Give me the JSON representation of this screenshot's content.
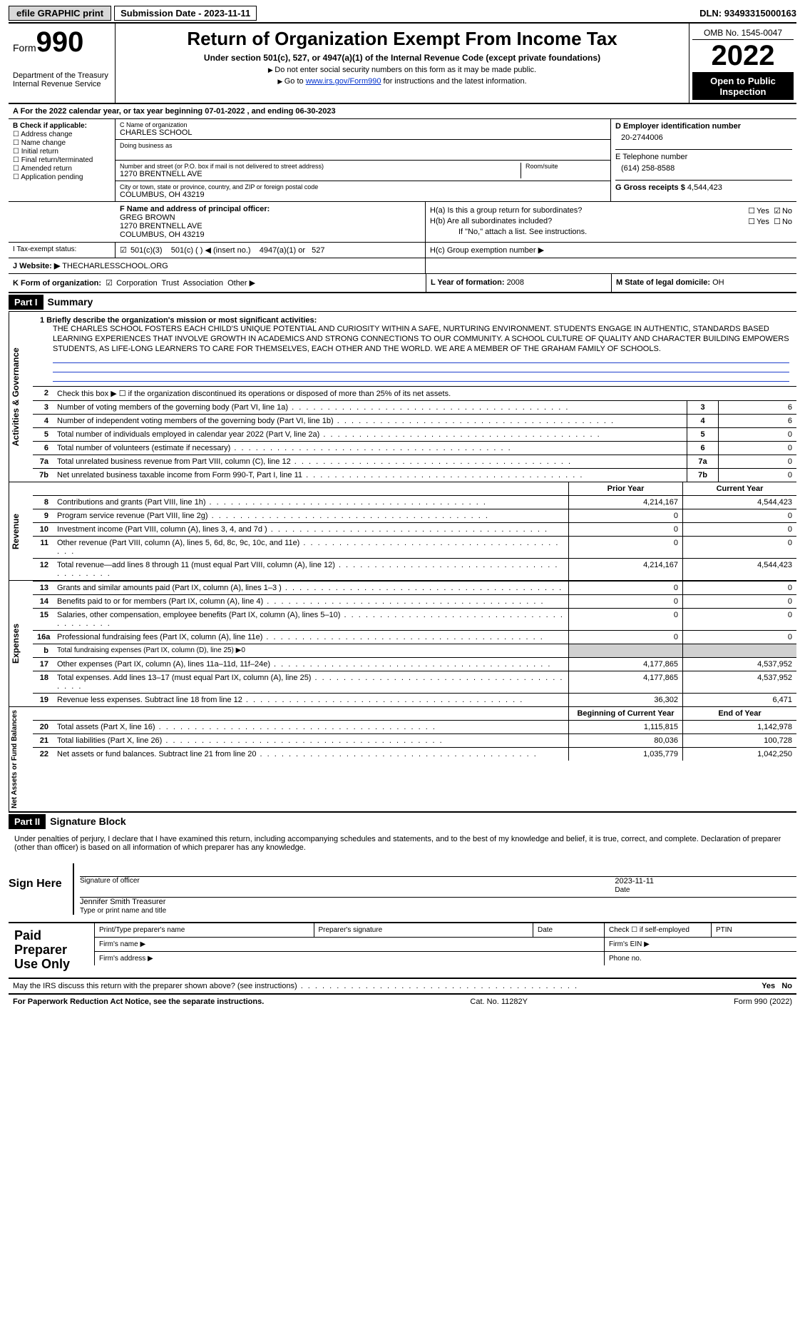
{
  "topbar": {
    "efile": "efile GRAPHIC print",
    "sub_label": "Submission Date - ",
    "sub_date": "2023-11-11",
    "dln_label": "DLN: ",
    "dln": "93493315000163"
  },
  "header": {
    "form_word": "Form",
    "form_num": "990",
    "dept": "Department of the Treasury\nInternal Revenue Service",
    "title": "Return of Organization Exempt From Income Tax",
    "sub": "Under section 501(c), 527, or 4947(a)(1) of the Internal Revenue Code (except private foundations)",
    "note1": "Do not enter social security numbers on this form as it may be made public.",
    "note2_pre": "Go to ",
    "note2_link": "www.irs.gov/Form990",
    "note2_post": " for instructions and the latest information.",
    "omb": "OMB No. 1545-0047",
    "year": "2022",
    "open": "Open to Public Inspection"
  },
  "period": {
    "text_a": "A For the 2022 calendar year, or tax year beginning ",
    "begin": "07-01-2022",
    "text_b": " , and ending ",
    "end": "06-30-2023"
  },
  "colB": {
    "label": "B Check if applicable:",
    "items": [
      "Address change",
      "Name change",
      "Initial return",
      "Final return/terminated",
      "Amended return",
      "Application pending"
    ]
  },
  "colC": {
    "name_label": "C Name of organization",
    "name": "CHARLES SCHOOL",
    "dba_label": "Doing business as",
    "street_label": "Number and street (or P.O. box if mail is not delivered to street address)",
    "street": "1270 BRENTNELL AVE",
    "room_label": "Room/suite",
    "city_label": "City or town, state or province, country, and ZIP or foreign postal code",
    "city": "COLUMBUS, OH  43219"
  },
  "colD": {
    "ein_label": "D Employer identification number",
    "ein": "20-2744006",
    "phone_label": "E Telephone number",
    "phone": "(614) 258-8588",
    "gross_label": "G Gross receipts $ ",
    "gross": "4,544,423"
  },
  "colF": {
    "label": "F Name and address of principal officer:",
    "name": "GREG BROWN",
    "street": "1270 BRENTNELL AVE",
    "city": "COLUMBUS, OH  43219"
  },
  "colH": {
    "ha": "H(a)  Is this a group return for subordinates?",
    "hb": "H(b)  Are all subordinates included?",
    "hb_note": "If \"No,\" attach a list. See instructions.",
    "hc": "H(c)  Group exemption number ▶",
    "yes": "Yes",
    "no": "No"
  },
  "statusI": {
    "label": "I Tax-exempt status:",
    "o1": "501(c)(3)",
    "o2": "501(c) (  ) ◀ (insert no.)",
    "o3": "4947(a)(1) or",
    "o4": "527"
  },
  "rowJ": {
    "label": "J  Website: ▶",
    "value": "THECHARLESSCHOOL.ORG"
  },
  "rowK": {
    "label": "K Form of organization:",
    "o1": "Corporation",
    "o2": "Trust",
    "o3": "Association",
    "o4": "Other ▶",
    "L": "L Year of formation: ",
    "Lv": "2008",
    "M": "M State of legal domicile: ",
    "Mv": "OH"
  },
  "part1": {
    "hdr": "Part I",
    "title": "Summary",
    "side_gov": "Activities & Governance",
    "side_rev": "Revenue",
    "side_exp": "Expenses",
    "side_net": "Net Assets or Fund Balances",
    "line1_label": "1  Briefly describe the organization's mission or most significant activities:",
    "mission": "THE CHARLES SCHOOL FOSTERS EACH CHILD'S UNIQUE POTENTIAL AND CURIOSITY WITHIN A SAFE, NURTURING ENVIRONMENT. STUDENTS ENGAGE IN AUTHENTIC, STANDARDS BASED LEARNING EXPERIENCES THAT INVOLVE GROWTH IN ACADEMICS AND STRONG CONNECTIONS TO OUR COMMUNITY. A SCHOOL CULTURE OF QUALITY AND CHARACTER BUILDING EMPOWERS STUDENTS, AS LIFE-LONG LEARNERS TO CARE FOR THEMSELVES, EACH OTHER AND THE WORLD. WE ARE A MEMBER OF THE GRAHAM FAMILY OF SCHOOLS.",
    "line2": "Check this box ▶ ☐ if the organization discontinued its operations or disposed of more than 25% of its net assets.",
    "lines_num": [
      {
        "n": "3",
        "d": "Number of voting members of the governing body (Part VI, line 1a)",
        "box": "3",
        "v": "6"
      },
      {
        "n": "4",
        "d": "Number of independent voting members of the governing body (Part VI, line 1b)",
        "box": "4",
        "v": "6"
      },
      {
        "n": "5",
        "d": "Total number of individuals employed in calendar year 2022 (Part V, line 2a)",
        "box": "5",
        "v": "0"
      },
      {
        "n": "6",
        "d": "Total number of volunteers (estimate if necessary)",
        "box": "6",
        "v": "0"
      },
      {
        "n": "7a",
        "d": "Total unrelated business revenue from Part VIII, column (C), line 12",
        "box": "7a",
        "v": "0"
      },
      {
        "n": "7b",
        "d": "Net unrelated business taxable income from Form 990-T, Part I, line 11",
        "box": "7b",
        "v": "0"
      }
    ],
    "py_hdr": "Prior Year",
    "cy_hdr": "Current Year",
    "rev_lines": [
      {
        "n": "8",
        "d": "Contributions and grants (Part VIII, line 1h)",
        "py": "4,214,167",
        "cy": "4,544,423"
      },
      {
        "n": "9",
        "d": "Program service revenue (Part VIII, line 2g)",
        "py": "0",
        "cy": "0"
      },
      {
        "n": "10",
        "d": "Investment income (Part VIII, column (A), lines 3, 4, and 7d )",
        "py": "0",
        "cy": "0"
      },
      {
        "n": "11",
        "d": "Other revenue (Part VIII, column (A), lines 5, 6d, 8c, 9c, 10c, and 11e)",
        "py": "0",
        "cy": "0"
      },
      {
        "n": "12",
        "d": "Total revenue—add lines 8 through 11 (must equal Part VIII, column (A), line 12)",
        "py": "4,214,167",
        "cy": "4,544,423"
      }
    ],
    "exp_lines": [
      {
        "n": "13",
        "d": "Grants and similar amounts paid (Part IX, column (A), lines 1–3 )",
        "py": "0",
        "cy": "0"
      },
      {
        "n": "14",
        "d": "Benefits paid to or for members (Part IX, column (A), line 4)",
        "py": "0",
        "cy": "0"
      },
      {
        "n": "15",
        "d": "Salaries, other compensation, employee benefits (Part IX, column (A), lines 5–10)",
        "py": "0",
        "cy": "0"
      },
      {
        "n": "16a",
        "d": "Professional fundraising fees (Part IX, column (A), line 11e)",
        "py": "0",
        "cy": "0"
      },
      {
        "n": "b",
        "d": "Total fundraising expenses (Part IX, column (D), line 25) ▶0",
        "py": "",
        "cy": "",
        "gray": true
      },
      {
        "n": "17",
        "d": "Other expenses (Part IX, column (A), lines 11a–11d, 11f–24e)",
        "py": "4,177,865",
        "cy": "4,537,952"
      },
      {
        "n": "18",
        "d": "Total expenses. Add lines 13–17 (must equal Part IX, column (A), line 25)",
        "py": "4,177,865",
        "cy": "4,537,952"
      },
      {
        "n": "19",
        "d": "Revenue less expenses. Subtract line 18 from line 12",
        "py": "36,302",
        "cy": "6,471"
      }
    ],
    "bcy_hdr": "Beginning of Current Year",
    "ecy_hdr": "End of Year",
    "net_lines": [
      {
        "n": "20",
        "d": "Total assets (Part X, line 16)",
        "py": "1,115,815",
        "cy": "1,142,978"
      },
      {
        "n": "21",
        "d": "Total liabilities (Part X, line 26)",
        "py": "80,036",
        "cy": "100,728"
      },
      {
        "n": "22",
        "d": "Net assets or fund balances. Subtract line 21 from line 20",
        "py": "1,035,779",
        "cy": "1,042,250"
      }
    ]
  },
  "part2": {
    "hdr": "Part II",
    "title": "Signature Block",
    "decl": "Under penalties of perjury, I declare that I have examined this return, including accompanying schedules and statements, and to the best of my knowledge and belief, it is true, correct, and complete. Declaration of preparer (other than officer) is based on all information of which preparer has any knowledge.",
    "sign_here": "Sign Here",
    "sig_officer": "Signature of officer",
    "sig_date": "Date",
    "sig_date_v": "2023-11-11",
    "officer_name": "Jennifer Smith Treasurer",
    "type_name": "Type or print name and title",
    "paid": "Paid Preparer Use Only",
    "p1": "Print/Type preparer's name",
    "p2": "Preparer's signature",
    "p3": "Date",
    "p4": "Check ☐ if self-employed",
    "p5": "PTIN",
    "p6": "Firm's name  ▶",
    "p7": "Firm's EIN ▶",
    "p8": "Firm's address ▶",
    "p9": "Phone no.",
    "discuss": "May the IRS discuss this return with the preparer shown above? (see instructions)",
    "yes": "Yes",
    "no": "No"
  },
  "footer": {
    "left": "For Paperwork Reduction Act Notice, see the separate instructions.",
    "mid": "Cat. No. 11282Y",
    "right": "Form 990 (2022)"
  }
}
